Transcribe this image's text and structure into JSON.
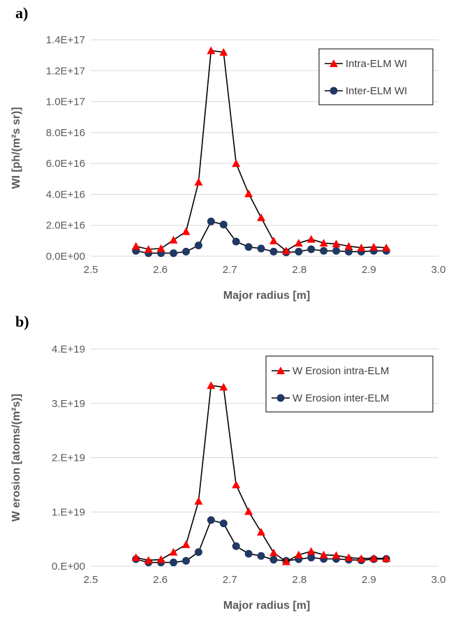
{
  "chart_data": [
    {
      "type": "line",
      "panel_label": "a)",
      "xlabel": "Major radius [m]",
      "ylabel": "WI [ph/(m²s sr)]",
      "xlim": [
        2.5,
        3.0
      ],
      "ylim": [
        0,
        1.4e+17
      ],
      "x_ticks": [
        "2.5",
        "2.6",
        "2.7",
        "2.8",
        "2.9",
        "3.0"
      ],
      "y_ticks": [
        "0.0E+00",
        "2.0E+16",
        "4.0E+16",
        "6.0E+16",
        "8.0E+16",
        "1.0E+17",
        "1.2E+17",
        "1.4E+17"
      ],
      "grid": "horizontal",
      "legend_position": "top-right",
      "x": [
        2.565,
        2.583,
        2.601,
        2.619,
        2.637,
        2.655,
        2.673,
        2.691,
        2.709,
        2.727,
        2.745,
        2.763,
        2.781,
        2.799,
        2.817,
        2.835,
        2.853,
        2.871,
        2.889,
        2.907,
        2.925
      ],
      "series": [
        {
          "name": "Intra-ELM WI",
          "color": "#ff0000",
          "marker": "triangle",
          "values": [
            6500000000000000.0,
            4500000000000000.0,
            5000000000000000.0,
            1.05e+16,
            1.6e+16,
            4.8e+16,
            1.33e+17,
            1.32e+17,
            6e+16,
            4.05e+16,
            2.5e+16,
            1e+16,
            3500000000000000.0,
            8500000000000000.0,
            1.1e+16,
            8500000000000000.0,
            8000000000000000.0,
            6500000000000000.0,
            5500000000000000.0,
            6000000000000000.0,
            5500000000000000.0
          ]
        },
        {
          "name": "Inter-ELM WI",
          "color": "#1f3864",
          "marker": "circle",
          "values": [
            3500000000000000.0,
            2000000000000000.0,
            2000000000000000.0,
            2000000000000000.0,
            3000000000000000.0,
            7000000000000000.0,
            2.25e+16,
            2.05e+16,
            9500000000000000.0,
            6000000000000000.0,
            5000000000000000.0,
            3000000000000000.0,
            2500000000000000.0,
            3000000000000000.0,
            4500000000000000.0,
            3500000000000000.0,
            3500000000000000.0,
            3000000000000000.0,
            3000000000000000.0,
            3500000000000000.0,
            3500000000000000.0
          ]
        }
      ]
    },
    {
      "type": "line",
      "panel_label": "b)",
      "xlabel": "Major radius [m]",
      "ylabel": "W erosion [atoms/(m²s)]",
      "xlim": [
        2.5,
        3.0
      ],
      "ylim": [
        0,
        4e+19
      ],
      "x_ticks": [
        "2.5",
        "2.6",
        "2.7",
        "2.8",
        "2.9",
        "3.0"
      ],
      "y_ticks": [
        "0.E+00",
        "1.E+19",
        "2.E+19",
        "3.E+19",
        "4.E+19"
      ],
      "grid": "horizontal",
      "legend_position": "top-right",
      "x": [
        2.565,
        2.583,
        2.601,
        2.619,
        2.637,
        2.655,
        2.673,
        2.691,
        2.709,
        2.727,
        2.745,
        2.763,
        2.781,
        2.799,
        2.817,
        2.835,
        2.853,
        2.871,
        2.889,
        2.907,
        2.925
      ],
      "series": [
        {
          "name": "W Erosion intra-ELM",
          "color": "#ff0000",
          "marker": "triangle",
          "values": [
            1.6e+18,
            1.1e+18,
            1.25e+18,
            2.6e+18,
            4e+18,
            1.2e+19,
            3.33e+19,
            3.3e+19,
            1.5e+19,
            1.01e+19,
            6.3e+18,
            2.5e+18,
            8.5e+17,
            2.1e+18,
            2.75e+18,
            2.1e+18,
            2e+18,
            1.6e+18,
            1.4e+18,
            1.5e+18,
            1.4e+18
          ]
        },
        {
          "name": "W Erosion inter-ELM",
          "color": "#1f3864",
          "marker": "circle",
          "values": [
            1.3e+18,
            7e+17,
            7e+17,
            7e+17,
            1e+18,
            2.6e+18,
            8.5e+18,
            7.9e+18,
            3.7e+18,
            2.3e+18,
            1.9e+18,
            1.2e+18,
            1e+18,
            1.3e+18,
            1.6e+18,
            1.35e+18,
            1.35e+18,
            1.2e+18,
            1.1e+18,
            1.3e+18,
            1.35e+18
          ]
        }
      ]
    }
  ]
}
